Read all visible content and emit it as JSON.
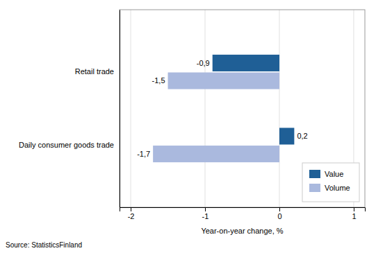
{
  "chart_data": {
    "type": "bar",
    "orientation": "horizontal",
    "categories": [
      "Daily consumer goods trade",
      "Retail trade"
    ],
    "series": [
      {
        "name": "Value",
        "color": "#1f5f96",
        "values": [
          0.2,
          -0.9
        ],
        "value_labels": [
          "0,2",
          "-0,9"
        ]
      },
      {
        "name": "Volume",
        "color": "#aab9de",
        "values": [
          -1.7,
          -1.5
        ],
        "value_labels": [
          "-1,7",
          "-1,5"
        ]
      }
    ],
    "xlim": [
      -2.15,
      1.15
    ],
    "xticks": [
      -2,
      -1,
      0,
      1
    ],
    "xlabel": "Year-on-year change, %",
    "source": "Source: StatisticsFinland",
    "grid": true,
    "legend": "lower right",
    "data_labels": true
  }
}
